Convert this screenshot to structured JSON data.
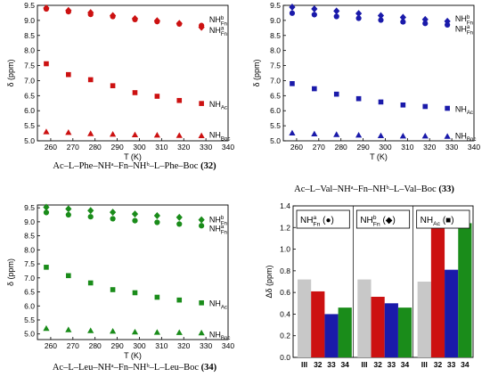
{
  "captions": [
    {
      "text": "Ac–L–Phe–NHᵃ–Fn–NHᵇ–L–Phe–Boc",
      "num": "(32)"
    },
    {
      "text": "Ac–L–Val–NHᵃ–Fn–NHᵇ–L–Val–Boc",
      "num": "(33)"
    },
    {
      "text": "Ac–L–Leu–NHᵃ–Fn–NHᵇ–L–Leu–Boc",
      "num": "(34)"
    }
  ],
  "chart_data": [
    {
      "type": "scatter",
      "xlabel": "T (K)",
      "ylabel": "δ (ppm)",
      "xlim": [
        254,
        340
      ],
      "ylim": [
        5.0,
        9.5
      ],
      "xticks": [
        260,
        270,
        280,
        290,
        300,
        310,
        320,
        330,
        340
      ],
      "yticks": [
        5.0,
        5.5,
        6.0,
        6.5,
        7.0,
        7.5,
        8.0,
        8.5,
        9.0,
        9.5
      ],
      "color": "#cc1111",
      "x": [
        258,
        268,
        278,
        288,
        298,
        308,
        318,
        328
      ],
      "series": [
        {
          "name": "NHᵇFn",
          "marker": "diamond",
          "y": [
            9.41,
            9.33,
            9.26,
            9.16,
            9.06,
            8.99,
            8.9,
            8.77
          ]
        },
        {
          "name": "NHᵃFn",
          "marker": "circle",
          "y": [
            9.38,
            9.29,
            9.2,
            9.13,
            9.03,
            8.96,
            8.88,
            8.83
          ]
        },
        {
          "name": "NHAc",
          "marker": "square",
          "y": [
            7.56,
            7.2,
            7.03,
            6.83,
            6.6,
            6.48,
            6.34,
            6.24
          ]
        },
        {
          "name": "NHBoc",
          "marker": "triangle",
          "y": [
            5.3,
            5.28,
            5.24,
            5.22,
            5.2,
            5.19,
            5.18,
            5.17
          ]
        }
      ],
      "labels": [
        {
          "base": "NH",
          "sup": "b",
          "sub": "Fn",
          "y": 9.02
        },
        {
          "base": "NH",
          "sup": "a",
          "sub": "Fn",
          "y": 8.67
        },
        {
          "base": "NH",
          "sup": "",
          "sub": "Ac",
          "y": 6.22
        },
        {
          "base": "NH",
          "sup": "",
          "sub": "Boc",
          "y": 5.19
        }
      ]
    },
    {
      "type": "scatter",
      "xlabel": "T (K)",
      "ylabel": "δ (ppm)",
      "xlim": [
        254,
        340
      ],
      "ylim": [
        5.0,
        9.5
      ],
      "xticks": [
        260,
        270,
        280,
        290,
        300,
        310,
        320,
        330,
        340
      ],
      "yticks": [
        5.0,
        5.5,
        6.0,
        6.5,
        7.0,
        7.5,
        8.0,
        8.5,
        9.0,
        9.5
      ],
      "color": "#1a1aaa",
      "x": [
        258,
        268,
        278,
        288,
        298,
        308,
        318,
        328
      ],
      "series": [
        {
          "name": "NHᵇFn",
          "marker": "diamond",
          "y": [
            9.44,
            9.38,
            9.31,
            9.23,
            9.16,
            9.1,
            9.03,
            8.97
          ]
        },
        {
          "name": "NHᵃFn",
          "marker": "circle",
          "y": [
            9.24,
            9.19,
            9.13,
            9.07,
            9.01,
            8.95,
            8.9,
            8.85
          ]
        },
        {
          "name": "NHAc",
          "marker": "square",
          "y": [
            6.9,
            6.73,
            6.55,
            6.4,
            6.29,
            6.19,
            6.14,
            6.08
          ]
        },
        {
          "name": "NHBoc",
          "marker": "triangle",
          "y": [
            5.26,
            5.23,
            5.21,
            5.19,
            5.17,
            5.16,
            5.16,
            5.15
          ]
        }
      ],
      "labels": [
        {
          "base": "NH",
          "sup": "b",
          "sub": "Fn",
          "y": 9.05
        },
        {
          "base": "NH",
          "sup": "a",
          "sub": "Fn",
          "y": 8.72
        },
        {
          "base": "NH",
          "sup": "",
          "sub": "Ac",
          "y": 6.05
        },
        {
          "base": "NH",
          "sup": "",
          "sub": "Boc",
          "y": 5.17
        }
      ]
    },
    {
      "type": "scatter",
      "xlabel": "T (K)",
      "ylabel": "δ (ppm)",
      "xlim": [
        254,
        340
      ],
      "ylim": [
        4.8,
        9.6
      ],
      "xticks": [
        260,
        270,
        280,
        290,
        300,
        310,
        320,
        330,
        340
      ],
      "yticks": [
        5.0,
        5.5,
        6.0,
        6.5,
        7.0,
        7.5,
        8.0,
        8.5,
        9.0,
        9.5
      ],
      "color": "#1a8c1a",
      "x": [
        258,
        268,
        278,
        288,
        298,
        308,
        318,
        328
      ],
      "series": [
        {
          "name": "NHᵇFn",
          "marker": "diamond",
          "y": [
            9.52,
            9.46,
            9.4,
            9.34,
            9.28,
            9.22,
            9.16,
            9.07
          ]
        },
        {
          "name": "NHᵃFn",
          "marker": "circle",
          "y": [
            9.33,
            9.25,
            9.18,
            9.11,
            9.04,
            8.98,
            8.92,
            8.86
          ]
        },
        {
          "name": "NHAc",
          "marker": "square",
          "y": [
            7.38,
            7.08,
            6.82,
            6.58,
            6.47,
            6.31,
            6.21,
            6.11
          ]
        },
        {
          "name": "NHBoc",
          "marker": "triangle",
          "y": [
            5.2,
            5.15,
            5.12,
            5.1,
            5.07,
            5.06,
            5.05,
            5.04
          ]
        }
      ],
      "labels": [
        {
          "base": "NH",
          "sup": "b",
          "sub": "Fn",
          "y": 9.08
        },
        {
          "base": "NH",
          "sup": "a",
          "sub": "Fn",
          "y": 8.76
        },
        {
          "base": "NH",
          "sup": "",
          "sub": "Ac",
          "y": 6.08
        },
        {
          "base": "NH",
          "sup": "",
          "sub": "Boc",
          "y": 4.98
        }
      ]
    },
    {
      "type": "bar",
      "ylabel": "Δδ (ppm)",
      "ylim": [
        0,
        1.4
      ],
      "yticks": [
        0.0,
        0.2,
        0.4,
        0.6,
        0.8,
        1.0,
        1.2,
        1.4
      ],
      "categories": [
        "III",
        "32",
        "33",
        "34"
      ],
      "category_colors": [
        "#c8c8c8",
        "#cc1111",
        "#1a1aaa",
        "#1a8c1a"
      ],
      "groups": [
        {
          "base": "NH",
          "sup": "a",
          "sub": "Fn",
          "symbol": "●",
          "values": [
            0.72,
            0.61,
            0.4,
            0.46
          ]
        },
        {
          "base": "NH",
          "sup": "b",
          "sub": "Fn",
          "symbol": "◆",
          "values": [
            0.72,
            0.56,
            0.5,
            0.46
          ]
        },
        {
          "base": "NH",
          "sup": "",
          "sub": "Ac",
          "symbol": "■",
          "values": [
            0.7,
            1.29,
            0.81,
            1.24
          ]
        }
      ]
    }
  ]
}
